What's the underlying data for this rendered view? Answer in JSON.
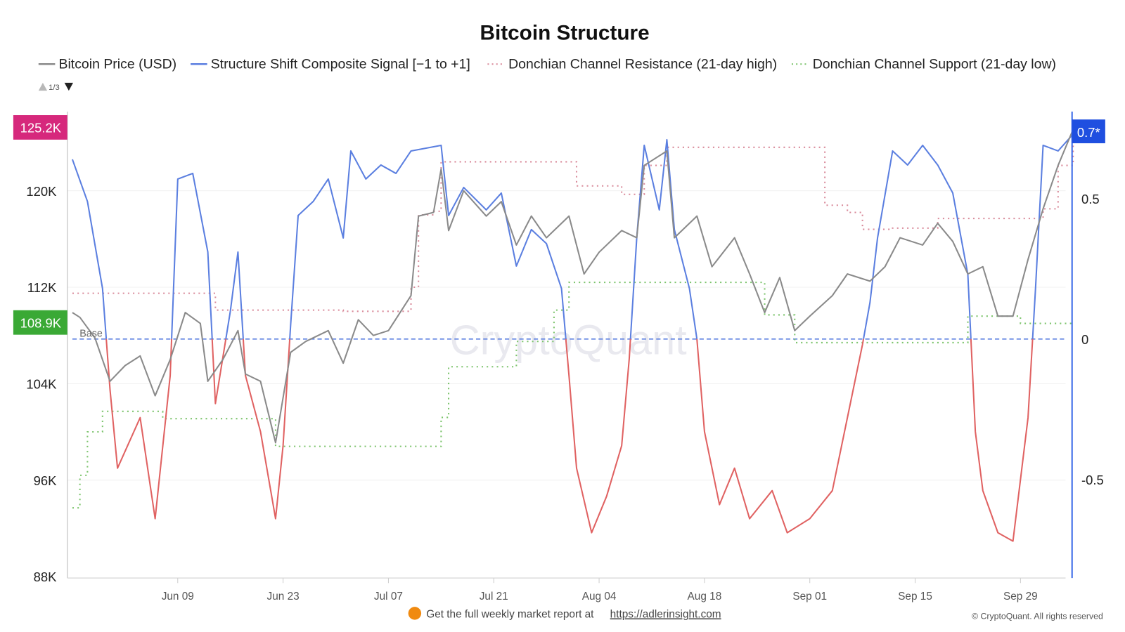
{
  "chart_data": {
    "type": "line",
    "title": "Bitcoin Structure",
    "legend": {
      "placement": "top",
      "pager": "1/3",
      "entries": [
        {
          "name": "Bitcoin Price (USD)",
          "color": "#8a8a8a",
          "style": "solid"
        },
        {
          "name": "Structure Shift Composite Signal [−1 to +1]",
          "color": "#5b7fe0",
          "style": "solid"
        },
        {
          "name": "Donchian Channel Resistance (21-day high)",
          "color": "#d98a9a",
          "style": "dotted"
        },
        {
          "name": "Donchian Channel Support (21-day low)",
          "color": "#7cc46c",
          "style": "dotted"
        }
      ]
    },
    "x_axis": {
      "type": "date",
      "range": [
        "05-26",
        "10-06"
      ],
      "ticks": [
        "Jun 09",
        "Jun 23",
        "Jul 07",
        "Jul 21",
        "Aug 04",
        "Aug 18",
        "Sep 01",
        "Sep 15",
        "Sep 29"
      ],
      "tick_dates": [
        "06-09",
        "06-23",
        "07-07",
        "07-21",
        "08-04",
        "08-18",
        "09-01",
        "09-15",
        "09-29"
      ]
    },
    "y_left": {
      "unit": "USD",
      "range": [
        88000,
        125200
      ],
      "ticks": [
        {
          "v": 88000,
          "label": "88K"
        },
        {
          "v": 96000,
          "label": "96K"
        },
        {
          "v": 104000,
          "label": "104K"
        },
        {
          "v": 112000,
          "label": "112K"
        },
        {
          "v": 120000,
          "label": "120K"
        }
      ],
      "grid": true
    },
    "y_right": {
      "range": [
        -0.85,
        0.85
      ],
      "ticks": [
        {
          "v": -0.5,
          "label": "-0.5"
        },
        {
          "v": 0,
          "label": "0"
        },
        {
          "v": 0.5,
          "label": "0.5"
        }
      ],
      "color": "#3b6be8"
    },
    "badges": {
      "price_high": {
        "label": "125.2K",
        "value": 125200,
        "color": "#d6287c"
      },
      "price_low": {
        "label": "108.9K",
        "value": 108900,
        "color": "#3aa935"
      },
      "signal_last": {
        "label": "0.7*",
        "value": 0.73,
        "color": "#1f4fe0"
      }
    },
    "baseline": {
      "label": "Base",
      "value": 0,
      "color": "#5b7fe0"
    },
    "signal_colors": {
      "positive": "#5b7fe0",
      "negative": "#e06262"
    },
    "watermark": "CryptoQuant",
    "series": [
      {
        "name": "Bitcoin Price (USD)",
        "axis": "left",
        "points": [
          [
            "05-26",
            109900
          ],
          [
            "05-27",
            109500
          ],
          [
            "05-29",
            107800
          ],
          [
            "05-31",
            104200
          ],
          [
            "06-02",
            105500
          ],
          [
            "06-04",
            106300
          ],
          [
            "06-06",
            103000
          ],
          [
            "06-08",
            106000
          ],
          [
            "06-10",
            109900
          ],
          [
            "06-12",
            109000
          ],
          [
            "06-13",
            104200
          ],
          [
            "06-15",
            106000
          ],
          [
            "06-17",
            108400
          ],
          [
            "06-18",
            104800
          ],
          [
            "06-20",
            104200
          ],
          [
            "06-22",
            99100
          ],
          [
            "06-24",
            106600
          ],
          [
            "06-26",
            107500
          ],
          [
            "06-29",
            108400
          ],
          [
            "07-01",
            105700
          ],
          [
            "07-03",
            109300
          ],
          [
            "07-05",
            108000
          ],
          [
            "07-07",
            108400
          ],
          [
            "07-10",
            111300
          ],
          [
            "07-11",
            117900
          ],
          [
            "07-13",
            118200
          ],
          [
            "07-14",
            121800
          ],
          [
            "07-15",
            116700
          ],
          [
            "07-17",
            120000
          ],
          [
            "07-20",
            117900
          ],
          [
            "07-22",
            119100
          ],
          [
            "07-24",
            115500
          ],
          [
            "07-26",
            117900
          ],
          [
            "07-28",
            116100
          ],
          [
            "07-31",
            117900
          ],
          [
            "08-02",
            113100
          ],
          [
            "08-04",
            114900
          ],
          [
            "08-07",
            116700
          ],
          [
            "08-09",
            116100
          ],
          [
            "08-10",
            122100
          ],
          [
            "08-13",
            123300
          ],
          [
            "08-14",
            116100
          ],
          [
            "08-17",
            117900
          ],
          [
            "08-19",
            113700
          ],
          [
            "08-22",
            116100
          ],
          [
            "08-24",
            113100
          ],
          [
            "08-26",
            109900
          ],
          [
            "08-28",
            112800
          ],
          [
            "08-30",
            108400
          ],
          [
            "09-01",
            109600
          ],
          [
            "09-04",
            111300
          ],
          [
            "09-06",
            113100
          ],
          [
            "09-09",
            112500
          ],
          [
            "09-11",
            113700
          ],
          [
            "09-13",
            116100
          ],
          [
            "09-16",
            115500
          ],
          [
            "09-18",
            117300
          ],
          [
            "09-20",
            115800
          ],
          [
            "09-22",
            113100
          ],
          [
            "09-24",
            113700
          ],
          [
            "09-26",
            109600
          ],
          [
            "09-28",
            109600
          ],
          [
            "09-30",
            114300
          ],
          [
            "10-02",
            118500
          ],
          [
            "10-04",
            122100
          ],
          [
            "10-06",
            125100
          ]
        ]
      },
      {
        "name": "Structure Shift Composite Signal [−1 to +1]",
        "axis": "right",
        "points": [
          [
            "05-26",
            0.64
          ],
          [
            "05-28",
            0.49
          ],
          [
            "05-30",
            0.18
          ],
          [
            "05-31",
            -0.18
          ],
          [
            "06-01",
            -0.46
          ],
          [
            "06-04",
            -0.28
          ],
          [
            "06-06",
            -0.64
          ],
          [
            "06-08",
            -0.13
          ],
          [
            "06-09",
            0.57
          ],
          [
            "06-11",
            0.59
          ],
          [
            "06-13",
            0.31
          ],
          [
            "06-14",
            -0.23
          ],
          [
            "06-16",
            0.1
          ],
          [
            "06-17",
            0.31
          ],
          [
            "06-18",
            -0.13
          ],
          [
            "06-20",
            -0.33
          ],
          [
            "06-22",
            -0.64
          ],
          [
            "06-23",
            -0.38
          ],
          [
            "06-24",
            0.05
          ],
          [
            "06-25",
            0.44
          ],
          [
            "06-27",
            0.49
          ],
          [
            "06-29",
            0.57
          ],
          [
            "07-01",
            0.36
          ],
          [
            "07-02",
            0.67
          ],
          [
            "07-04",
            0.57
          ],
          [
            "07-06",
            0.62
          ],
          [
            "07-08",
            0.59
          ],
          [
            "07-10",
            0.67
          ],
          [
            "07-12",
            0.68
          ],
          [
            "07-14",
            0.69
          ],
          [
            "07-15",
            0.44
          ],
          [
            "07-17",
            0.54
          ],
          [
            "07-20",
            0.46
          ],
          [
            "07-22",
            0.52
          ],
          [
            "07-24",
            0.26
          ],
          [
            "07-26",
            0.39
          ],
          [
            "07-28",
            0.34
          ],
          [
            "07-30",
            0.18
          ],
          [
            "07-31",
            -0.13
          ],
          [
            "08-01",
            -0.46
          ],
          [
            "08-03",
            -0.69
          ],
          [
            "08-05",
            -0.56
          ],
          [
            "08-07",
            -0.38
          ],
          [
            "08-08",
            -0.07
          ],
          [
            "08-09",
            0.36
          ],
          [
            "08-10",
            0.69
          ],
          [
            "08-12",
            0.46
          ],
          [
            "08-13",
            0.71
          ],
          [
            "08-14",
            0.39
          ],
          [
            "08-16",
            0.18
          ],
          [
            "08-17",
            0.0
          ],
          [
            "08-18",
            -0.33
          ],
          [
            "08-20",
            -0.59
          ],
          [
            "08-22",
            -0.46
          ],
          [
            "08-24",
            -0.64
          ],
          [
            "08-27",
            -0.54
          ],
          [
            "08-29",
            -0.69
          ],
          [
            "09-01",
            -0.64
          ],
          [
            "09-04",
            -0.54
          ],
          [
            "09-06",
            -0.28
          ],
          [
            "09-08",
            -0.02
          ],
          [
            "09-09",
            0.13
          ],
          [
            "09-10",
            0.36
          ],
          [
            "09-12",
            0.67
          ],
          [
            "09-14",
            0.62
          ],
          [
            "09-16",
            0.69
          ],
          [
            "09-18",
            0.62
          ],
          [
            "09-20",
            0.52
          ],
          [
            "09-22",
            0.23
          ],
          [
            "09-23",
            -0.33
          ],
          [
            "09-24",
            -0.54
          ],
          [
            "09-26",
            -0.69
          ],
          [
            "09-28",
            -0.72
          ],
          [
            "09-30",
            -0.28
          ],
          [
            "10-01",
            0.18
          ],
          [
            "10-02",
            0.69
          ],
          [
            "10-04",
            0.67
          ],
          [
            "10-06",
            0.73
          ]
        ]
      },
      {
        "name": "Donchian Channel Resistance (21-day high)",
        "axis": "left",
        "step": true,
        "points": [
          [
            "05-26",
            111500
          ],
          [
            "06-14",
            110100
          ],
          [
            "07-01",
            110000
          ],
          [
            "07-10",
            112000
          ],
          [
            "07-11",
            118000
          ],
          [
            "07-13",
            118300
          ],
          [
            "07-14",
            122400
          ],
          [
            "08-01",
            120400
          ],
          [
            "08-07",
            119700
          ],
          [
            "08-10",
            122100
          ],
          [
            "08-13",
            123600
          ],
          [
            "09-03",
            118800
          ],
          [
            "09-06",
            118200
          ],
          [
            "09-08",
            116800
          ],
          [
            "09-12",
            116900
          ],
          [
            "09-18",
            117700
          ],
          [
            "10-01",
            117700
          ],
          [
            "10-02",
            118500
          ],
          [
            "10-04",
            122100
          ],
          [
            "10-06",
            125100
          ]
        ]
      },
      {
        "name": "Donchian Channel Support (21-day low)",
        "axis": "left",
        "step": true,
        "points": [
          [
            "05-26",
            93700
          ],
          [
            "05-27",
            96400
          ],
          [
            "05-28",
            100000
          ],
          [
            "05-30",
            101700
          ],
          [
            "06-07",
            101100
          ],
          [
            "06-22",
            98800
          ],
          [
            "07-14",
            101200
          ],
          [
            "07-15",
            105400
          ],
          [
            "07-24",
            107500
          ],
          [
            "07-29",
            110100
          ],
          [
            "07-31",
            112400
          ],
          [
            "08-26",
            109700
          ],
          [
            "08-30",
            107400
          ],
          [
            "09-22",
            109600
          ],
          [
            "09-29",
            109000
          ],
          [
            "10-06",
            109000
          ]
        ]
      }
    ]
  },
  "footer": {
    "report_text": "Get the full weekly market report at",
    "report_link": "https://adlerinsight.com",
    "copyright": "© CryptoQuant. All rights reserved"
  }
}
